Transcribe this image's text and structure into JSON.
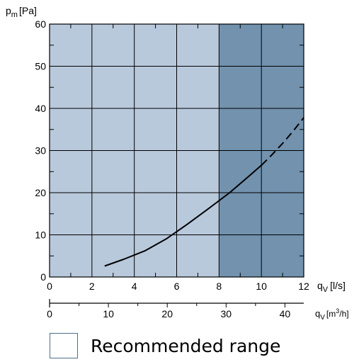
{
  "chart_data": {
    "type": "line",
    "y_axis": {
      "label_main": "p",
      "label_sub": "m",
      "label_unit": "[Pa]",
      "ylim": [
        0,
        60
      ],
      "ticks": [
        0,
        10,
        20,
        30,
        40,
        50,
        60
      ]
    },
    "x_axis": {
      "label_main": "q",
      "label_sub": "V",
      "label_unit": "[l/s]",
      "xlim": [
        0,
        12
      ],
      "ticks": [
        0,
        2,
        4,
        6,
        8,
        10,
        12
      ]
    },
    "x_axis_secondary": {
      "label_main": "q",
      "label_sub": "V",
      "label_unit_prefix": "[m",
      "label_unit_sup": "3",
      "label_unit_suffix": "/h]",
      "ticks": [
        0,
        10,
        20,
        30,
        40
      ],
      "xlim": [
        0,
        43.2
      ]
    },
    "grid": true,
    "recommended_range": [
      0,
      8
    ],
    "series": [
      {
        "style": "solid",
        "x": [
          2.6,
          3.5,
          4.5,
          5.5,
          6.5,
          7.5,
          8.5,
          9.5,
          10.0
        ],
        "y": [
          2.6,
          4.2,
          6.2,
          9.0,
          12.5,
          16.2,
          20.0,
          24.3,
          26.5
        ]
      },
      {
        "style": "dashed",
        "x": [
          10.0,
          10.5,
          11.0,
          11.5,
          12.0
        ],
        "y": [
          26.5,
          29.0,
          31.7,
          34.6,
          37.8
        ]
      }
    ]
  },
  "legend": {
    "label": "Recommended range"
  },
  "colors": {
    "recommended": "#b9c9dc",
    "above": "#7292ae",
    "border": "#4f6f88",
    "line": "#000000"
  }
}
